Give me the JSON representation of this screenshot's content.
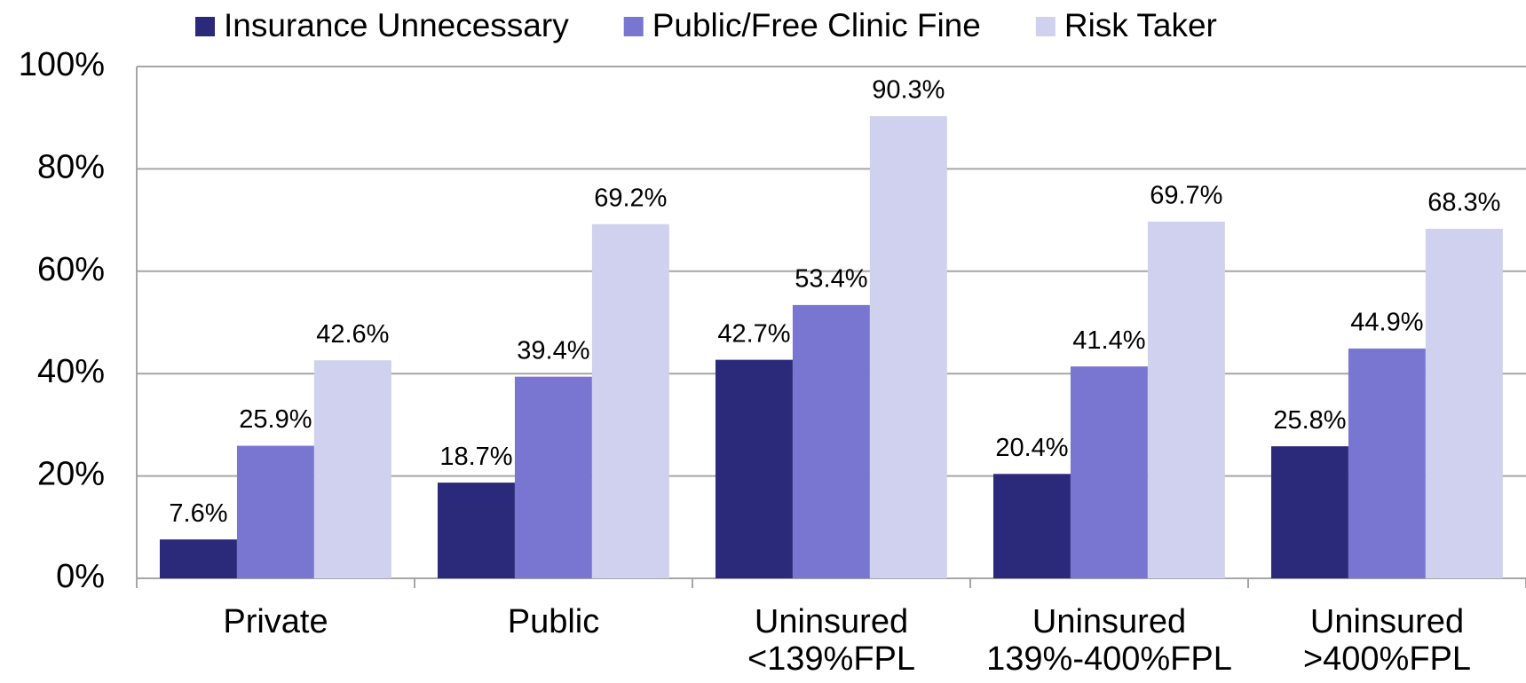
{
  "chart_data": {
    "type": "bar",
    "categories": [
      "Private",
      "Public",
      "Uninsured\n<139%FPL",
      "Uninsured\n139%-400%FPL",
      "Uninsured\n>400%FPL"
    ],
    "series": [
      {
        "name": "Insurance Unnecessary",
        "color": "#2b2a7a",
        "values": [
          7.6,
          18.7,
          42.7,
          20.4,
          25.8
        ],
        "value_labels": [
          "7.6%",
          "18.7%",
          "42.7%",
          "20.4%",
          "25.8%"
        ]
      },
      {
        "name": "Public/Free Clinic Fine",
        "color": "#7876d1",
        "values": [
          25.9,
          39.4,
          53.4,
          41.4,
          44.9
        ],
        "value_labels": [
          "25.9%",
          "39.4%",
          "53.4%",
          "41.4%",
          "44.9%"
        ]
      },
      {
        "name": "Risk Taker",
        "color": "#d0d0ef",
        "values": [
          42.6,
          69.2,
          90.3,
          69.7,
          68.3
        ],
        "value_labels": [
          "42.6%",
          "69.2%",
          "90.3%",
          "69.7%",
          "68.3%"
        ]
      }
    ],
    "ylim": [
      0,
      100
    ],
    "yticks": [
      {
        "value": 0,
        "label": "0%"
      },
      {
        "value": 20,
        "label": "20%"
      },
      {
        "value": 40,
        "label": "40%"
      },
      {
        "value": 60,
        "label": "60%"
      },
      {
        "value": 80,
        "label": "80%"
      },
      {
        "value": 100,
        "label": "100%"
      }
    ],
    "grid": true,
    "legend": "top"
  }
}
